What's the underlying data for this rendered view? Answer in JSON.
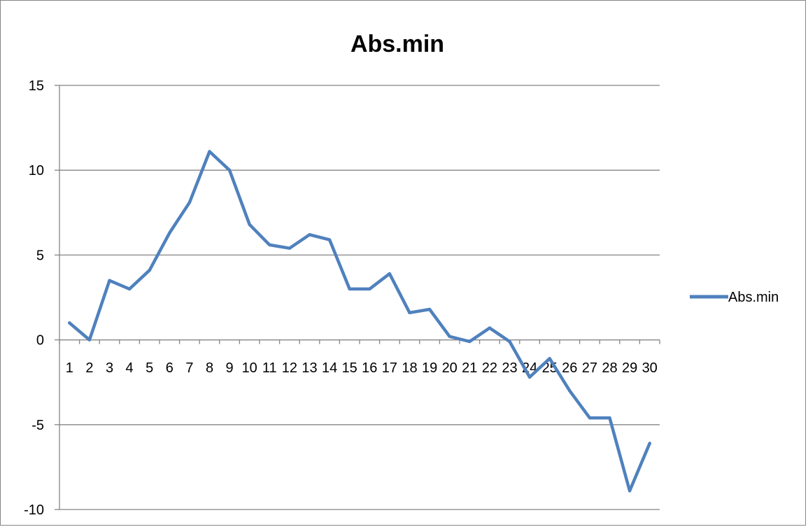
{
  "chart_data": {
    "type": "line",
    "title": "Abs.min",
    "xlabel": "",
    "ylabel": "",
    "categories": [
      "1",
      "2",
      "3",
      "4",
      "5",
      "6",
      "7",
      "8",
      "9",
      "10",
      "11",
      "12",
      "13",
      "14",
      "15",
      "16",
      "17",
      "18",
      "19",
      "20",
      "21",
      "22",
      "23",
      "24",
      "25",
      "26",
      "27",
      "28",
      "29",
      "30"
    ],
    "series": [
      {
        "name": "Abs.min",
        "color": "#4f81bd",
        "values": [
          1.0,
          0.0,
          3.5,
          3.0,
          4.1,
          6.3,
          8.1,
          11.1,
          10.0,
          6.8,
          5.6,
          5.4,
          6.2,
          5.9,
          3.0,
          3.0,
          3.9,
          1.6,
          1.8,
          0.2,
          -0.1,
          0.7,
          -0.1,
          -2.2,
          -1.1,
          -3.0,
          -4.6,
          -4.6,
          -8.9,
          -6.1
        ]
      }
    ],
    "ylim": [
      -10,
      15
    ],
    "yticks": [
      "15",
      "10",
      "5",
      "0",
      "-5",
      "-10"
    ],
    "grid": true,
    "legend_position": "right"
  }
}
